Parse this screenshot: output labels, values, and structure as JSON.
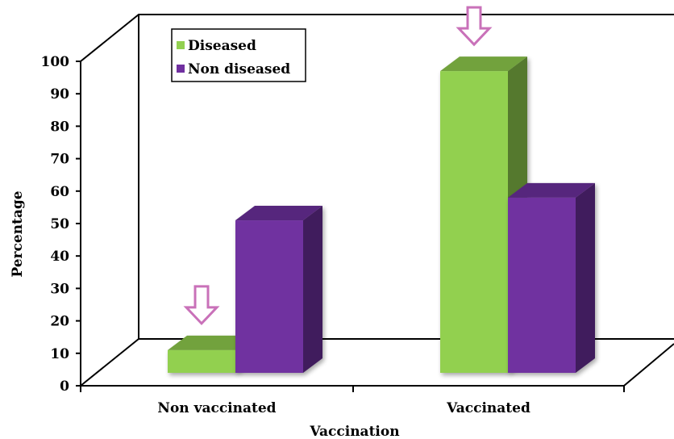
{
  "chart_data": {
    "type": "bar",
    "title": "",
    "xlabel": "Vaccination",
    "ylabel": "Percentage",
    "ylim": [
      0,
      100
    ],
    "yticks": [
      0,
      10,
      20,
      30,
      40,
      50,
      60,
      70,
      80,
      90,
      100
    ],
    "categories": [
      "Non vaccinated",
      "Vaccinated"
    ],
    "series": [
      {
        "name": "Diseased",
        "values": [
          7,
          93
        ],
        "color": "#92d050"
      },
      {
        "name": "Non diseased",
        "values": [
          47,
          54
        ],
        "color": "#7030a0"
      }
    ],
    "legend": "top-left",
    "grid": false,
    "annotations": [
      {
        "type": "down-arrow",
        "category": "Non vaccinated",
        "series": "Diseased",
        "color": "#c971b9"
      },
      {
        "type": "down-arrow",
        "category": "Vaccinated",
        "series": "Diseased",
        "color": "#c971b9"
      }
    ]
  }
}
